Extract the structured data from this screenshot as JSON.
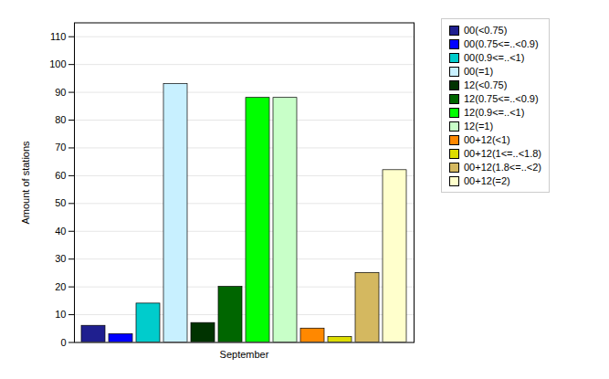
{
  "chart_data": {
    "type": "bar",
    "categories": [
      "September"
    ],
    "series": [
      {
        "name": "00(<0.75)",
        "color": "#1F1F8F",
        "values": [
          6
        ]
      },
      {
        "name": "00(0.75<=..<0.9)",
        "color": "#0000FF",
        "values": [
          3
        ]
      },
      {
        "name": "00(0.9<=..<1)",
        "color": "#00CCCC",
        "values": [
          14
        ]
      },
      {
        "name": "00(=1)",
        "color": "#C8F0FF",
        "values": [
          93
        ]
      },
      {
        "name": "12(<0.75)",
        "color": "#003300",
        "values": [
          7
        ]
      },
      {
        "name": "12(0.75<=..<0.9)",
        "color": "#006600",
        "values": [
          20
        ]
      },
      {
        "name": "12(0.9<=..<1)",
        "color": "#00FF00",
        "values": [
          88
        ]
      },
      {
        "name": "12(=1)",
        "color": "#C8FFC8",
        "values": [
          88
        ]
      },
      {
        "name": "00+12(<1)",
        "color": "#FF8800",
        "values": [
          5
        ]
      },
      {
        "name": "00+12(1<=..<1.8)",
        "color": "#DDDD00",
        "values": [
          2
        ]
      },
      {
        "name": "00+12(1.8<=..<2)",
        "color": "#D4B860",
        "values": [
          25
        ]
      },
      {
        "name": "00+12(=2)",
        "color": "#FFFFCC",
        "values": [
          62
        ]
      }
    ],
    "ylabel": "Amount of stations",
    "ylim": [
      0,
      115
    ],
    "yticks": [
      0,
      10,
      20,
      30,
      40,
      50,
      60,
      70,
      80,
      90,
      100,
      110
    ],
    "grid": true,
    "legend": "upper right"
  }
}
